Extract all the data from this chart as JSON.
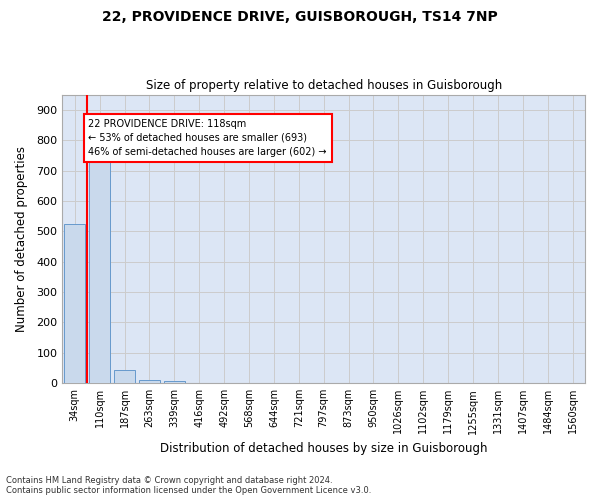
{
  "title1": "22, PROVIDENCE DRIVE, GUISBOROUGH, TS14 7NP",
  "title2": "Size of property relative to detached houses in Guisborough",
  "xlabel": "Distribution of detached houses by size in Guisborough",
  "ylabel": "Number of detached properties",
  "footnote1": "Contains HM Land Registry data © Crown copyright and database right 2024.",
  "footnote2": "Contains public sector information licensed under the Open Government Licence v3.0.",
  "bins": [
    "34sqm",
    "110sqm",
    "187sqm",
    "263sqm",
    "339sqm",
    "416sqm",
    "492sqm",
    "568sqm",
    "644sqm",
    "721sqm",
    "797sqm",
    "873sqm",
    "950sqm",
    "1026sqm",
    "1102sqm",
    "1179sqm",
    "1255sqm",
    "1331sqm",
    "1407sqm",
    "1484sqm",
    "1560sqm"
  ],
  "values": [
    525,
    727,
    45,
    12,
    8,
    0,
    0,
    0,
    0,
    0,
    0,
    0,
    0,
    0,
    0,
    0,
    0,
    0,
    0,
    0,
    0
  ],
  "bar_color": "#c9d9ec",
  "bar_edge_color": "#6699cc",
  "property_line_color": "red",
  "annotation_text": "22 PROVIDENCE DRIVE: 118sqm\n← 53% of detached houses are smaller (693)\n46% of semi-detached houses are larger (602) →",
  "annotation_box_color": "white",
  "annotation_box_edge": "red",
  "ylim": [
    0,
    950
  ],
  "yticks": [
    0,
    100,
    200,
    300,
    400,
    500,
    600,
    700,
    800,
    900
  ],
  "grid_color": "#cccccc",
  "background_color": "#dce6f5"
}
